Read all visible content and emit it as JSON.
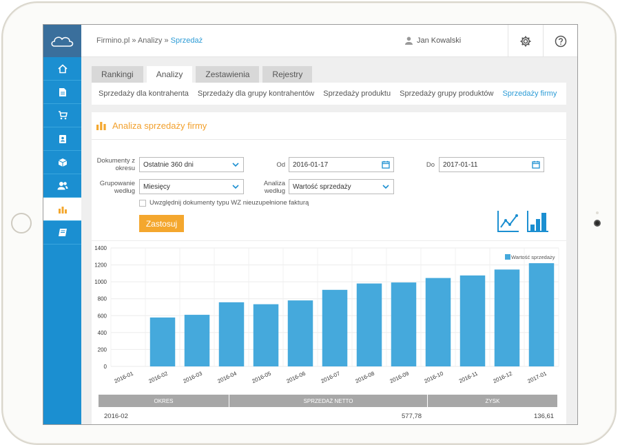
{
  "breadcrumb": {
    "part1": "Firmino.pl",
    "sep": "»",
    "part2": "Analizy",
    "current": "Sprzedaż"
  },
  "user": {
    "name": "Jan Kowalski"
  },
  "tabs": [
    {
      "label": "Rankingi"
    },
    {
      "label": "Analizy"
    },
    {
      "label": "Zestawienia"
    },
    {
      "label": "Rejestry"
    }
  ],
  "subnav": [
    {
      "label": "Sprzedaży dla kontrahenta"
    },
    {
      "label": "Sprzedaży dla grupy kontrahentów"
    },
    {
      "label": "Sprzedaży produktu"
    },
    {
      "label": "Sprzedaży grupy produktów"
    },
    {
      "label": "Sprzedaży firmy"
    }
  ],
  "panel": {
    "title": "Analiza sprzedaży firmy"
  },
  "form": {
    "period_label_1": "Dokumenty z",
    "period_label_2": "okresu",
    "period_value": "Ostatnie 360 dni",
    "from_label": "Od",
    "from_value": "2016-01-17",
    "to_label": "Do",
    "to_value": "2017-01-11",
    "group_label_1": "Grupowanie",
    "group_label_2": "według",
    "group_value": "Miesięcy",
    "analysis_label_1": "Analiza",
    "analysis_label_2": "według",
    "analysis_value": "Wartość sprzedaży",
    "checkbox_label": "Uwzględnij dokumenty typu WZ nieuzupełnione fakturą",
    "apply_label": "Zastosuj"
  },
  "colors": {
    "accent_blue": "#1b8fd1",
    "bar": "#45a9dc",
    "orange": "#f4a72e"
  },
  "chart_data": {
    "type": "bar",
    "categories": [
      "2016-01",
      "2016-02",
      "2016-03",
      "2016-04",
      "2016-05",
      "2016-06",
      "2016-07",
      "2016-08",
      "2016-09",
      "2016-10",
      "2016-11",
      "2016-12",
      "2017-01"
    ],
    "series": [
      {
        "name": "Wartość sprzedaży",
        "values": [
          0,
          578,
          610,
          758,
          735,
          780,
          905,
          980,
          992,
          1045,
          1075,
          1145,
          1220
        ]
      }
    ],
    "yticks": [
      0,
      200,
      400,
      600,
      800,
      1000,
      1200,
      1400
    ],
    "ylim": [
      0,
      1400
    ],
    "grid": true,
    "legend": "top-right"
  },
  "table": {
    "headers": [
      "OKRES",
      "SPRZEDAŻ NETTO",
      "ZYSK"
    ],
    "rows": [
      {
        "okres": "2016-02",
        "netto": "577,78",
        "zysk": "136,61"
      }
    ]
  }
}
